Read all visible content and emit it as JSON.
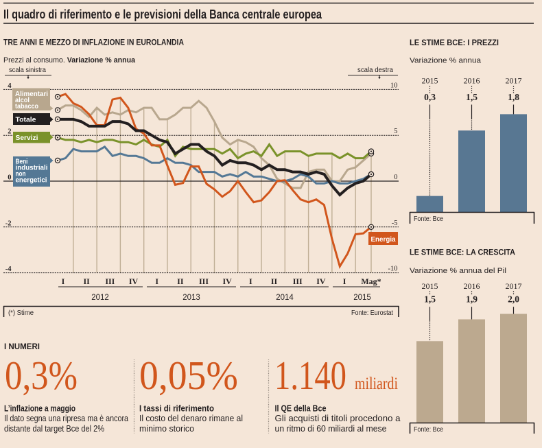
{
  "title": "Il quadro di riferimento e le previsioni della Banca centrale europea",
  "colors": {
    "background": "#f5e6d8",
    "ink": "#231f20",
    "accent": "#d1561c"
  },
  "chart_data": [
    {
      "type": "line",
      "title": "TRE ANNI E MEZZO DI INFLAZIONE IN EUROLANDIA",
      "subtitle_regular": "Prezzi al consumo. ",
      "subtitle_bold": "Variazione % annua",
      "frequency": "monthly",
      "x_quarter_labels": [
        "I",
        "II",
        "III",
        "IV",
        "I",
        "II",
        "III",
        "IV",
        "I",
        "II",
        "III",
        "IV",
        "I",
        "Mag*"
      ],
      "x_year_labels": [
        "2012",
        "2013",
        "2014",
        "2015"
      ],
      "y_left": {
        "label": "scala sinistra",
        "range": [
          -4,
          4
        ],
        "ticks": [
          4,
          2,
          0,
          -2,
          -4
        ],
        "tick_labels": [
          "4",
          "2",
          "0",
          "-2",
          "-4"
        ]
      },
      "y_right": {
        "label": "scala destra",
        "range": [
          -10,
          10
        ],
        "ticks": [
          10,
          5,
          0,
          -5,
          -10
        ],
        "tick_labels": [
          "10",
          "5",
          "0",
          "-5",
          "-10"
        ]
      },
      "grid": true,
      "legend_placement": "inline-left",
      "series": [
        {
          "name": "Alimentari alcol tabacco",
          "label_lines": [
            "Alimentari",
            "alcol",
            "tabacco"
          ],
          "color": "#b8a78e",
          "axis": "left",
          "values": [
            3.1,
            3.3,
            3.3,
            3.1,
            2.8,
            3.2,
            2.9,
            3.0,
            2.9,
            3.1,
            3.0,
            3.2,
            3.2,
            2.7,
            2.7,
            2.9,
            3.2,
            3.2,
            3.5,
            3.2,
            2.6,
            1.9,
            1.6,
            1.8,
            1.7,
            1.5,
            1.0,
            0.7,
            0.1,
            -0.1,
            -0.3,
            -0.3,
            0.4,
            0.5,
            0.5,
            0.0,
            0.0,
            0.5,
            0.6,
            0.9,
            1.2
          ]
        },
        {
          "name": "Totale",
          "label_lines": [
            "Totale"
          ],
          "color": "#231f20",
          "axis": "left",
          "values": [
            2.7,
            2.7,
            2.7,
            2.6,
            2.4,
            2.4,
            2.4,
            2.6,
            2.6,
            2.5,
            2.2,
            2.2,
            2.0,
            1.8,
            1.7,
            1.2,
            1.4,
            1.6,
            1.6,
            1.3,
            1.1,
            0.7,
            0.9,
            0.8,
            0.8,
            0.7,
            0.5,
            0.7,
            0.5,
            0.5,
            0.4,
            0.4,
            0.3,
            0.4,
            0.3,
            -0.2,
            -0.6,
            -0.3,
            -0.1,
            0.0,
            0.3
          ]
        },
        {
          "name": "Servizi",
          "label_lines": [
            "Servizi"
          ],
          "color": "#7a922a",
          "axis": "left",
          "values": [
            1.9,
            1.8,
            1.8,
            1.7,
            1.8,
            1.7,
            1.8,
            1.8,
            1.7,
            1.7,
            1.6,
            1.8,
            1.6,
            1.5,
            1.8,
            1.1,
            1.5,
            1.4,
            1.4,
            1.4,
            1.4,
            1.2,
            1.4,
            1.0,
            1.2,
            1.3,
            1.1,
            1.6,
            1.1,
            1.3,
            1.3,
            1.3,
            1.1,
            1.2,
            1.2,
            1.2,
            1.0,
            1.2,
            1.0,
            1.0,
            1.3
          ]
        },
        {
          "name": "Beni industriali non energetici",
          "label_lines": [
            "Beni",
            "industriali",
            "non",
            "energetici"
          ],
          "color": "#547895",
          "axis": "left",
          "values": [
            0.9,
            1.0,
            1.4,
            1.3,
            1.3,
            1.3,
            1.5,
            1.1,
            1.2,
            1.1,
            1.1,
            1.0,
            0.8,
            0.8,
            1.0,
            0.8,
            0.8,
            0.7,
            0.4,
            0.4,
            0.4,
            0.2,
            0.3,
            0.2,
            0.4,
            0.2,
            0.2,
            0.1,
            0.0,
            0.0,
            0.1,
            0.3,
            0.2,
            -0.1,
            -0.1,
            0.0,
            -0.1,
            -0.1,
            0.0,
            0.1,
            0.3
          ]
        },
        {
          "name": "Energia",
          "label_lines": [
            "Energia"
          ],
          "color": "#d1561c",
          "axis": "right",
          "values": [
            9.2,
            9.5,
            8.5,
            8.1,
            7.3,
            6.1,
            6.1,
            8.9,
            9.1,
            8.0,
            5.7,
            5.2,
            3.9,
            3.9,
            1.7,
            -0.4,
            -0.2,
            1.6,
            1.6,
            -0.3,
            -0.9,
            -1.7,
            -1.1,
            0.0,
            -1.2,
            -2.3,
            -2.1,
            -1.2,
            0.0,
            0.1,
            -1.0,
            -2.0,
            -2.3,
            -2.0,
            -2.6,
            -6.3,
            -9.3,
            -7.9,
            -5.8,
            -5.7,
            -5.0
          ]
        }
      ],
      "footnote": "(*) Stime",
      "source": "Fonte: Eurostat"
    },
    {
      "type": "bar",
      "title": "LE STIME BCE: I PREZZI",
      "subtitle": "Variazione % annua",
      "categories": [
        "2015",
        "2016",
        "2017"
      ],
      "values": [
        0.3,
        1.5,
        1.8
      ],
      "value_labels": [
        "0,3",
        "1,5",
        "1,8"
      ],
      "color": "#587792",
      "source": "Fonte: Bce"
    },
    {
      "type": "bar",
      "title": "LE STIME BCE: LA CRESCITA",
      "subtitle": "Variazione % annua del Pil",
      "categories": [
        "2015",
        "2016",
        "2017"
      ],
      "values": [
        1.5,
        1.9,
        2.0
      ],
      "value_labels": [
        "1,5",
        "1,9",
        "2,0"
      ],
      "color": "#bca98f",
      "source": "Fonte: Bce"
    }
  ],
  "numbers": {
    "heading": "I NUMERI",
    "items": [
      {
        "value": "0,3%",
        "unit": "",
        "title": "L’inflazione a maggio",
        "lines": [
          "Il dato segna una ripresa ma è ancora",
          "distante dal target Bce del 2%"
        ]
      },
      {
        "value": "0,05%",
        "unit": "",
        "title": "I tassi di riferimento",
        "lines": [
          "Il costo del denaro rimane al",
          "minimo storico"
        ]
      },
      {
        "value": "1.140",
        "unit": "miliardi",
        "title": "Il QE della Bce",
        "lines": [
          "Gli acquisti di titoli procedono a",
          "un ritmo di 60 miliardi al mese"
        ]
      }
    ]
  }
}
